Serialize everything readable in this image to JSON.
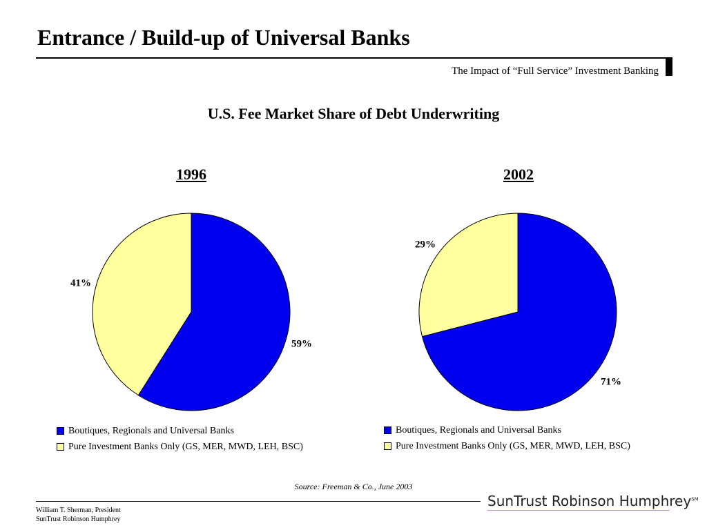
{
  "header": {
    "title": "Entrance / Build-up of Universal Banks",
    "subtitle": "The Impact of “Full Service” Investment Banking"
  },
  "chart_heading": "U.S. Fee Market Share of Debt Underwriting",
  "colors": {
    "series_1": "#0000ee",
    "series_2": "#ffffa0"
  },
  "chart_data": [
    {
      "type": "pie",
      "title": "1996",
      "slices": [
        {
          "name": "Boutiques, Regionals and Universal Banks",
          "value": 59,
          "label": "59%"
        },
        {
          "name": "Pure Investment Banks Only (GS, MER, MWD, LEH, BSC)",
          "value": 41,
          "label": "41%"
        }
      ],
      "legend": [
        "Boutiques, Regionals and Universal Banks",
        "Pure Investment Banks Only (GS, MER, MWD, LEH, BSC)"
      ],
      "legend_placement": "bottom"
    },
    {
      "type": "pie",
      "title": "2002",
      "slices": [
        {
          "name": "Boutiques, Regionals and Universal Banks",
          "value": 71,
          "label": "71%"
        },
        {
          "name": "Pure Investment Banks Only (GS, MER, MWD, LEH, BSC)",
          "value": 29,
          "label": "29%"
        }
      ],
      "legend": [
        "Boutiques, Regionals and Universal Banks",
        "Pure Investment Banks Only (GS, MER, MWD, LEH, BSC)"
      ],
      "legend_placement": "bottom"
    }
  ],
  "source": "Source: Freeman & Co.,  June 2003",
  "footer": {
    "line1": "William T. Sherman, President",
    "line2": "SunTrust Robinson Humphrey"
  },
  "logo": {
    "text": "SunTrust Robinson Humphrey",
    "mark": "SM"
  }
}
